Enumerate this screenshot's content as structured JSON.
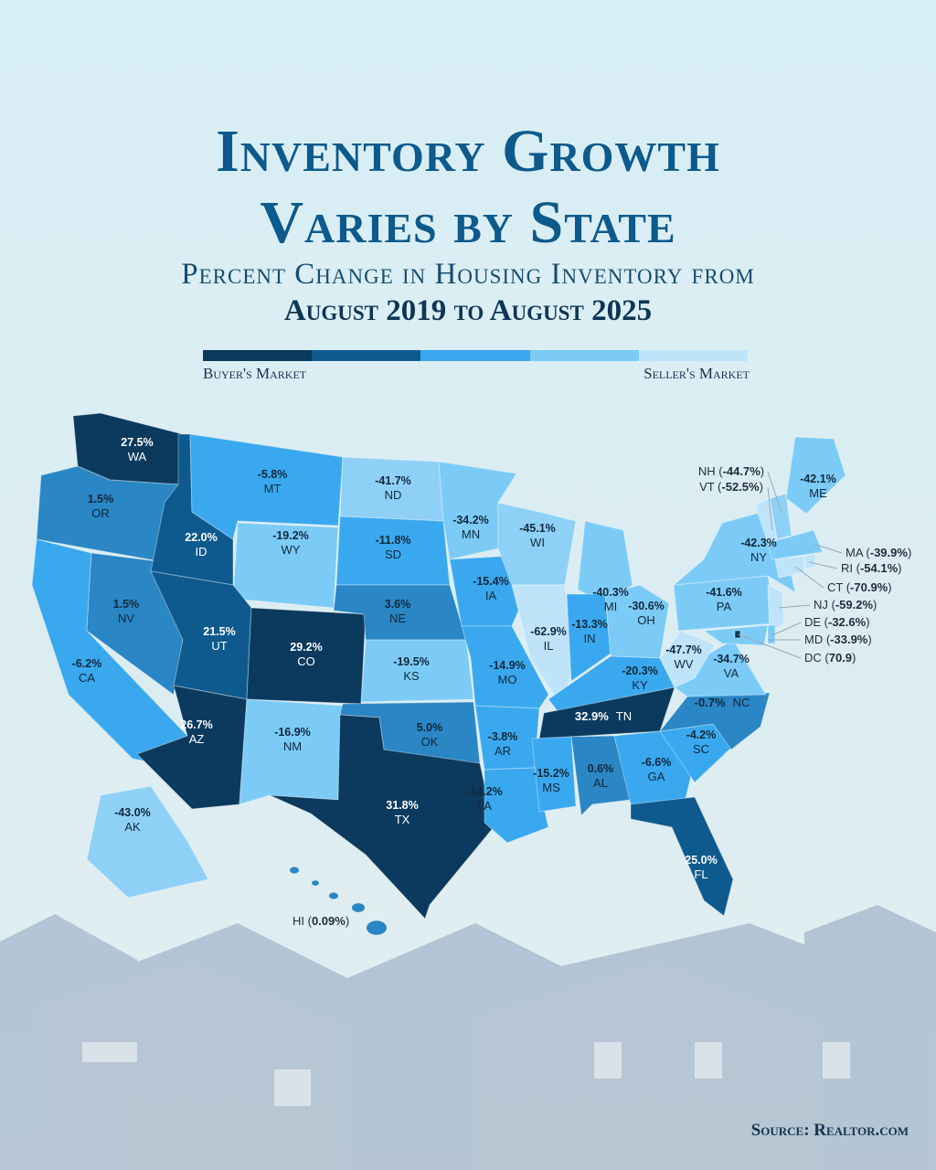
{
  "title": {
    "line1": "Inventory Growth",
    "line2": "Varies by State"
  },
  "subtitle": {
    "line1": "Percent Change in Housing Inventory from",
    "line2": "August 2019 to August 2025"
  },
  "legend": {
    "colors": [
      "#0b3a5e",
      "#0e5a8e",
      "#3aa8ee",
      "#7ccbf7",
      "#bfe4fa"
    ],
    "left_label": "Buyer's Market",
    "right_label": "Seller's Market"
  },
  "source": "Source: Realtor.com",
  "states": [
    {
      "abbr": "WA",
      "value": "27.5%",
      "color": "#0b3a5e"
    },
    {
      "abbr": "OR",
      "value": "1.5%",
      "color": "#2a86c4"
    },
    {
      "abbr": "CA",
      "value": "-6.2%",
      "color": "#3aa8ee"
    },
    {
      "abbr": "NV",
      "value": "1.5%",
      "color": "#2a86c4"
    },
    {
      "abbr": "ID",
      "value": "22.0%",
      "color": "#0e5a8e"
    },
    {
      "abbr": "MT",
      "value": "-5.8%",
      "color": "#3aa8ee"
    },
    {
      "abbr": "WY",
      "value": "-19.2%",
      "color": "#7ccbf7"
    },
    {
      "abbr": "UT",
      "value": "21.5%",
      "color": "#0e5a8e"
    },
    {
      "abbr": "CO",
      "value": "29.2%",
      "color": "#0b3a5e"
    },
    {
      "abbr": "AZ",
      "value": "26.7%",
      "color": "#0b3a5e"
    },
    {
      "abbr": "NM",
      "value": "-16.9%",
      "color": "#7ccbf7"
    },
    {
      "abbr": "ND",
      "value": "-41.7%",
      "color": "#8fd0f7"
    },
    {
      "abbr": "SD",
      "value": "-11.8%",
      "color": "#3aa8ee"
    },
    {
      "abbr": "NE",
      "value": "3.6%",
      "color": "#2a86c4"
    },
    {
      "abbr": "KS",
      "value": "-19.5%",
      "color": "#7ccbf7"
    },
    {
      "abbr": "OK",
      "value": "5.0%",
      "color": "#2a86c4"
    },
    {
      "abbr": "TX",
      "value": "31.8%",
      "color": "#0b3a5e"
    },
    {
      "abbr": "MN",
      "value": "-34.2%",
      "color": "#7ccbf7"
    },
    {
      "abbr": "IA",
      "value": "-15.4%",
      "color": "#3aa8ee"
    },
    {
      "abbr": "MO",
      "value": "-14.9%",
      "color": "#3aa8ee"
    },
    {
      "abbr": "AR",
      "value": "-3.8%",
      "color": "#3aa8ee"
    },
    {
      "abbr": "LA",
      "value": "-14.2%",
      "color": "#3aa8ee"
    },
    {
      "abbr": "WI",
      "value": "-45.1%",
      "color": "#8fd0f7"
    },
    {
      "abbr": "IL",
      "value": "-62.9%",
      "color": "#bfe4fa"
    },
    {
      "abbr": "MI",
      "value": "-40.3%",
      "color": "#7ccbf7"
    },
    {
      "abbr": "IN",
      "value": "-13.3%",
      "color": "#3aa8ee"
    },
    {
      "abbr": "OH",
      "value": "-30.6%",
      "color": "#7ccbf7"
    },
    {
      "abbr": "KY",
      "value": "-20.3%",
      "color": "#3aa8ee"
    },
    {
      "abbr": "TN",
      "value": "32.9%",
      "color": "#0b3a5e"
    },
    {
      "abbr": "MS",
      "value": "-15.2%",
      "color": "#3aa8ee"
    },
    {
      "abbr": "AL",
      "value": "0.6%",
      "color": "#2a86c4"
    },
    {
      "abbr": "GA",
      "value": "-6.6%",
      "color": "#3aa8ee"
    },
    {
      "abbr": "FL",
      "value": "25.0%",
      "color": "#0e5a8e"
    },
    {
      "abbr": "SC",
      "value": "-4.2%",
      "color": "#3aa8ee"
    },
    {
      "abbr": "NC",
      "value": "-0.7%",
      "color": "#2a86c4"
    },
    {
      "abbr": "VA",
      "value": "-34.7%",
      "color": "#7ccbf7"
    },
    {
      "abbr": "WV",
      "value": "-47.7%",
      "color": "#bfe4fa"
    },
    {
      "abbr": "PA",
      "value": "-41.6%",
      "color": "#7ccbf7"
    },
    {
      "abbr": "NY",
      "value": "-42.3%",
      "color": "#7ccbf7"
    },
    {
      "abbr": "ME",
      "value": "-42.1%",
      "color": "#7ccbf7"
    },
    {
      "abbr": "AK",
      "value": "-43.0%",
      "color": "#8fd0f7"
    }
  ],
  "callouts": [
    {
      "abbr": "NH",
      "value": "-44.7%",
      "color": "#8fd0f7"
    },
    {
      "abbr": "VT",
      "value": "-52.5%",
      "color": "#bfe4fa"
    },
    {
      "abbr": "MA",
      "value": "-39.9%",
      "color": "#7ccbf7"
    },
    {
      "abbr": "RI",
      "value": "-54.1%",
      "color": "#bfe4fa"
    },
    {
      "abbr": "CT",
      "value": "-70.9%",
      "color": "#bfe4fa"
    },
    {
      "abbr": "NJ",
      "value": "-59.2%",
      "color": "#bfe4fa"
    },
    {
      "abbr": "DE",
      "value": "-32.6%",
      "color": "#7ccbf7"
    },
    {
      "abbr": "MD",
      "value": "-33.9%",
      "color": "#7ccbf7"
    },
    {
      "abbr": "DC",
      "value": "70.9",
      "color": "#0b3a5e"
    },
    {
      "abbr": "HI",
      "value": "0.09%",
      "color": "#2a86c4"
    }
  ]
}
